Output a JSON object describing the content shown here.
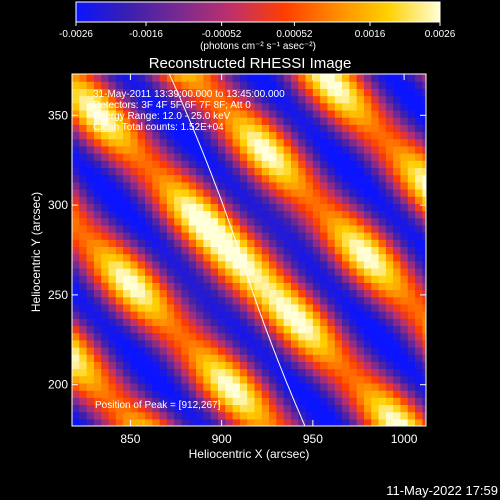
{
  "colorbar": {
    "tick_labels": [
      "-0.0026",
      "-0.0016",
      "-0.00052",
      "0.00052",
      "0.0016",
      "0.0026"
    ],
    "unit_label": "(photons cm⁻² s⁻¹ asec⁻²)",
    "range": [
      -0.0026,
      0.0026
    ],
    "colors": [
      "#0b14ff",
      "#3a1fb0",
      "#7a2a90",
      "#c0306a",
      "#ff3d00",
      "#ff8a00",
      "#ffd000",
      "#ffffd8"
    ]
  },
  "chart_data": {
    "type": "heatmap",
    "title": "Reconstructed RHESSI Image",
    "xlabel": "Heliocentric X (arcsec)",
    "ylabel": "Heliocentric Y (arcsec)",
    "xlim": [
      818,
      1012
    ],
    "ylim": [
      177,
      373
    ],
    "x_ticks": [
      850,
      900,
      950,
      1000
    ],
    "y_ticks": [
      200,
      250,
      300,
      350
    ],
    "peak": [
      912,
      267
    ],
    "annotations": [
      "31-May-2011 13:39:00.000 to 13:45:00.000",
      "Detectors: 3F 4F 5F 6F 7F 8F; Att 0",
      "Energy Range: 12.0 - 25.0 keV",
      "Clean     Total counts: 1.52E+04"
    ],
    "peak_label": "Position of Peak = [912,267]"
  },
  "timestamp": "11-May-2022 17:59"
}
